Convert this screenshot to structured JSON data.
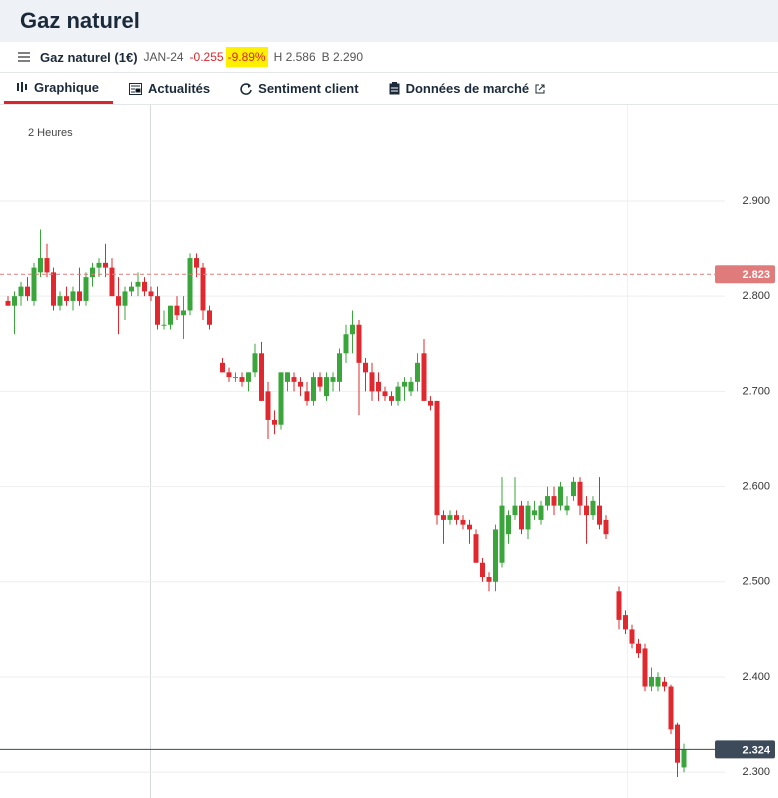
{
  "header": {
    "title": "Gaz naturel"
  },
  "instrument": {
    "name": "Gaz naturel (1€)",
    "expiry": "JAN-24",
    "change": "-0.255",
    "change_pct": "-9.89%",
    "high": "H 2.586",
    "low": "B 2.290"
  },
  "tabs": [
    "Graphique",
    "Actualités",
    "Sentiment client",
    "Données de marché"
  ],
  "chart_data": {
    "type": "candlestick",
    "timeframe": "2 Heures",
    "open": [
      2.795,
      2.79,
      2.8,
      2.81,
      2.795,
      2.825,
      2.84,
      2.825,
      2.79,
      2.8,
      2.795,
      2.805,
      2.795,
      2.82,
      2.83,
      2.835,
      2.83,
      2.8,
      2.79,
      2.805,
      2.81,
      2.815,
      2.805,
      2.8,
      2.77,
      2.77,
      2.79,
      2.78,
      2.785,
      2.84,
      2.83,
      2.785,
      null,
      2.73,
      2.72,
      2.715,
      2.715,
      2.71,
      2.72,
      2.74,
      2.7,
      2.67,
      2.665,
      2.71,
      2.715,
      2.71,
      2.7,
      2.69,
      2.715,
      2.695,
      2.71,
      2.71,
      2.74,
      2.76,
      2.77,
      2.73,
      2.72,
      2.71,
      2.7,
      2.695,
      2.69,
      2.705,
      2.7,
      2.71,
      2.74,
      2.69,
      2.69,
      2.57,
      2.565,
      2.57,
      2.565,
      2.56,
      2.55,
      2.52,
      2.505,
      2.5,
      2.52,
      2.55,
      2.57,
      2.58,
      2.555,
      2.57,
      2.565,
      2.58,
      2.59,
      2.58,
      2.575,
      2.59,
      2.605,
      2.58,
      2.57,
      2.58,
      2.565,
      null,
      2.49,
      2.465,
      2.45,
      2.435,
      2.43,
      2.39,
      2.39,
      2.395,
      2.39,
      2.35,
      2.305
    ],
    "high": [
      2.8,
      2.805,
      2.815,
      2.82,
      2.835,
      2.87,
      2.855,
      2.83,
      2.805,
      2.81,
      2.81,
      2.83,
      2.825,
      2.835,
      2.84,
      2.855,
      2.84,
      2.82,
      2.81,
      2.815,
      2.825,
      2.82,
      2.81,
      2.81,
      2.785,
      2.79,
      2.8,
      2.8,
      2.845,
      2.845,
      2.835,
      2.79,
      null,
      2.735,
      2.725,
      2.72,
      2.72,
      2.72,
      2.75,
      2.752,
      2.71,
      2.68,
      2.72,
      2.72,
      2.72,
      2.715,
      2.71,
      2.72,
      2.72,
      2.72,
      2.72,
      2.745,
      2.77,
      2.785,
      2.775,
      2.735,
      2.73,
      2.72,
      2.705,
      2.7,
      2.71,
      2.715,
      2.715,
      2.74,
      2.755,
      2.695,
      2.69,
      2.575,
      2.575,
      2.575,
      2.57,
      2.565,
      2.555,
      2.525,
      2.51,
      2.56,
      2.61,
      2.575,
      2.61,
      2.585,
      2.585,
      2.585,
      2.585,
      2.6,
      2.6,
      2.605,
      2.59,
      2.61,
      2.61,
      2.59,
      2.59,
      2.61,
      2.57,
      null,
      2.495,
      2.47,
      2.455,
      2.44,
      2.435,
      2.41,
      2.405,
      2.4,
      2.392,
      2.352,
      2.33
    ],
    "low": [
      2.79,
      2.76,
      2.79,
      2.795,
      2.79,
      2.82,
      2.82,
      2.785,
      2.785,
      2.79,
      2.785,
      2.79,
      2.79,
      2.81,
      2.82,
      2.82,
      2.8,
      2.76,
      2.775,
      2.8,
      2.8,
      2.8,
      2.795,
      2.765,
      2.765,
      2.765,
      2.775,
      2.755,
      2.78,
      2.82,
      2.775,
      2.765,
      null,
      2.72,
      2.71,
      2.71,
      2.705,
      2.7,
      2.715,
      2.69,
      2.65,
      2.655,
      2.66,
      2.7,
      2.7,
      2.695,
      2.685,
      2.685,
      2.7,
      2.69,
      2.7,
      2.7,
      2.73,
      2.74,
      2.675,
      2.7,
      2.69,
      2.69,
      2.69,
      2.685,
      2.685,
      2.69,
      2.695,
      2.7,
      2.69,
      2.68,
      2.56,
      2.54,
      2.56,
      2.56,
      2.555,
      2.54,
      2.52,
      2.5,
      2.49,
      2.49,
      2.515,
      2.54,
      2.565,
      2.55,
      2.545,
      2.565,
      2.56,
      2.575,
      2.57,
      2.575,
      2.57,
      2.585,
      2.57,
      2.54,
      2.565,
      2.555,
      2.545,
      null,
      2.45,
      2.445,
      2.43,
      2.42,
      2.385,
      2.385,
      2.385,
      2.385,
      2.34,
      2.295,
      2.3
    ],
    "close": [
      2.79,
      2.8,
      2.81,
      2.8,
      2.83,
      2.84,
      2.825,
      2.79,
      2.8,
      2.795,
      2.805,
      2.795,
      2.82,
      2.83,
      2.835,
      2.83,
      2.8,
      2.79,
      2.805,
      2.81,
      2.815,
      2.805,
      2.8,
      2.77,
      2.77,
      2.79,
      2.78,
      2.785,
      2.84,
      2.83,
      2.785,
      2.77,
      null,
      2.72,
      2.715,
      2.715,
      2.71,
      2.72,
      2.74,
      2.69,
      2.67,
      2.665,
      2.72,
      2.72,
      2.71,
      2.705,
      2.69,
      2.715,
      2.705,
      2.715,
      2.715,
      2.74,
      2.76,
      2.77,
      2.73,
      2.72,
      2.7,
      2.7,
      2.695,
      2.69,
      2.705,
      2.71,
      2.71,
      2.73,
      2.69,
      2.685,
      2.57,
      2.565,
      2.57,
      2.565,
      2.56,
      2.555,
      2.52,
      2.505,
      2.5,
      2.555,
      2.58,
      2.57,
      2.58,
      2.555,
      2.58,
      2.575,
      2.58,
      2.59,
      2.58,
      2.6,
      2.58,
      2.605,
      2.58,
      2.57,
      2.585,
      2.56,
      2.55,
      null,
      2.46,
      2.45,
      2.435,
      2.425,
      2.39,
      2.4,
      2.4,
      2.39,
      2.345,
      2.31,
      2.324
    ],
    "up_color": "#3aa53a",
    "down_color": "#e0282e",
    "ylim": [
      2.2729,
      3.0008
    ],
    "yticks": [
      {
        "value": 2.3,
        "label": "2.300"
      },
      {
        "value": 2.4,
        "label": "2.400"
      },
      {
        "value": 2.5,
        "label": "2.500"
      },
      {
        "value": 2.6,
        "label": "2.600"
      },
      {
        "value": 2.7,
        "label": "2.700"
      },
      {
        "value": 2.8,
        "label": "2.800"
      },
      {
        "value": 2.9,
        "label": "2.900"
      }
    ],
    "grid": true,
    "price_lines": [
      {
        "value": 2.823,
        "color": "#e07b7b",
        "dashed": true
      },
      {
        "value": 2.324,
        "color": "#3c4a5a",
        "dashed": false
      }
    ]
  }
}
